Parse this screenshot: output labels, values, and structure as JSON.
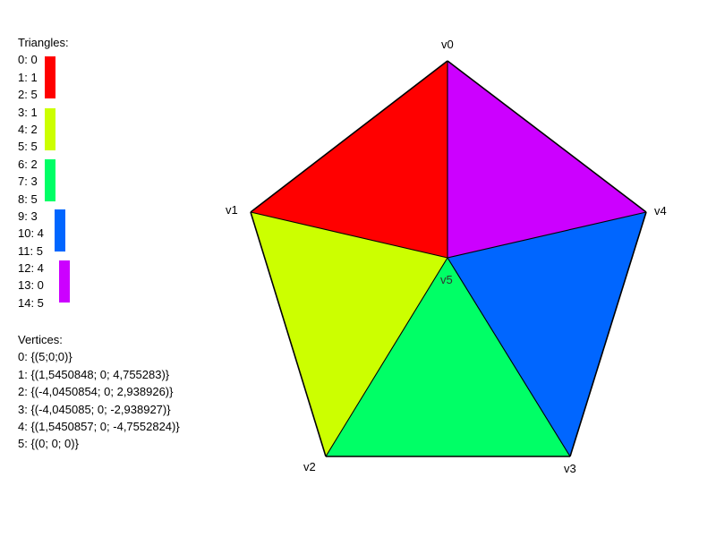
{
  "triangles": {
    "heading": "Triangles:",
    "groups": [
      {
        "color": "#ff0000",
        "rows": [
          "0: 0",
          "1: 1",
          "2: 5"
        ]
      },
      {
        "color": "#ccff00",
        "rows": [
          "3: 1",
          "4: 2",
          "5: 5"
        ]
      },
      {
        "color": "#00ff66",
        "rows": [
          "6: 2",
          "7: 3",
          "8: 5"
        ]
      },
      {
        "color": "#0066ff",
        "rows": [
          "9: 3",
          "10: 4",
          "11: 5"
        ]
      },
      {
        "color": "#cc00ff",
        "rows": [
          "12: 4",
          "13: 0",
          "14: 5"
        ]
      }
    ]
  },
  "vertices": {
    "heading": "Vertices:",
    "rows": [
      "0: {(5;0;0)}",
      "1: {(1,5450848; 0; 4,755283)}",
      "2: {(-4,0450854; 0; 2,938926)}",
      "3: {(-4,045085; 0; -2,938927)}",
      "4: {(1,5450857; 0; -4,7552824)}",
      "5: {(0; 0; 0)}"
    ]
  },
  "diagram": {
    "vertex_labels": [
      "v0",
      "v1",
      "v2",
      "v3",
      "v4",
      "v5"
    ],
    "face_colors": [
      "#ff0000",
      "#ccff00",
      "#00ff66",
      "#0066ff",
      "#cc00ff"
    ],
    "edge_color": "#000000"
  }
}
